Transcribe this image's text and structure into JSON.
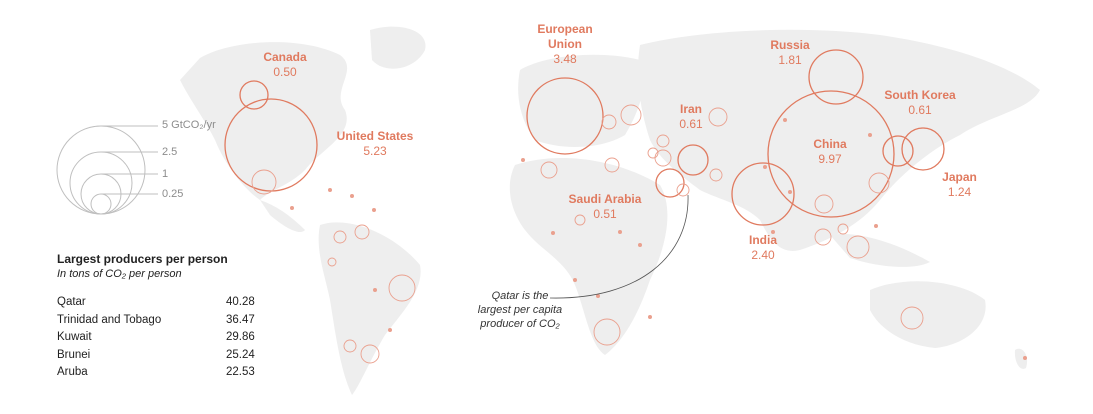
{
  "countries": [
    {
      "id": "canada",
      "name": "Canada",
      "value": "0.50"
    },
    {
      "id": "united-states",
      "name": "United States",
      "value": "5.23"
    },
    {
      "id": "european-union",
      "name": "European Union",
      "value": "3.48"
    },
    {
      "id": "russia",
      "name": "Russia",
      "value": "1.81"
    },
    {
      "id": "iran",
      "name": "Iran",
      "value": "0.61"
    },
    {
      "id": "south-korea",
      "name": "South Korea",
      "value": "0.61"
    },
    {
      "id": "china",
      "name": "China",
      "value": "9.97"
    },
    {
      "id": "saudi-arabia",
      "name": "Saudi Arabia",
      "value": "0.51"
    },
    {
      "id": "japan",
      "name": "Japan",
      "value": "1.24"
    },
    {
      "id": "india",
      "name": "India",
      "value": "2.40"
    }
  ],
  "scale_legend": {
    "labels": [
      "5 GtCO₂/yr",
      "2.5",
      "1",
      "0.25"
    ]
  },
  "per_person": {
    "title": "Largest producers per person",
    "subtitle": "In tons of CO₂ per person",
    "rows": [
      {
        "name": "Qatar",
        "value": "40.28"
      },
      {
        "name": "Trinidad and Tobago",
        "value": "36.47"
      },
      {
        "name": "Kuwait",
        "value": "29.86"
      },
      {
        "name": "Brunei",
        "value": "25.24"
      },
      {
        "name": "Aruba",
        "value": "22.53"
      }
    ]
  },
  "annotation": {
    "line1": "Qatar is the",
    "line2": "largest per capita",
    "line3": "producer of CO₂"
  },
  "colors": {
    "accent": "#e07a5f",
    "land": "#eeeeee",
    "legend": "#bfbfbf"
  }
}
